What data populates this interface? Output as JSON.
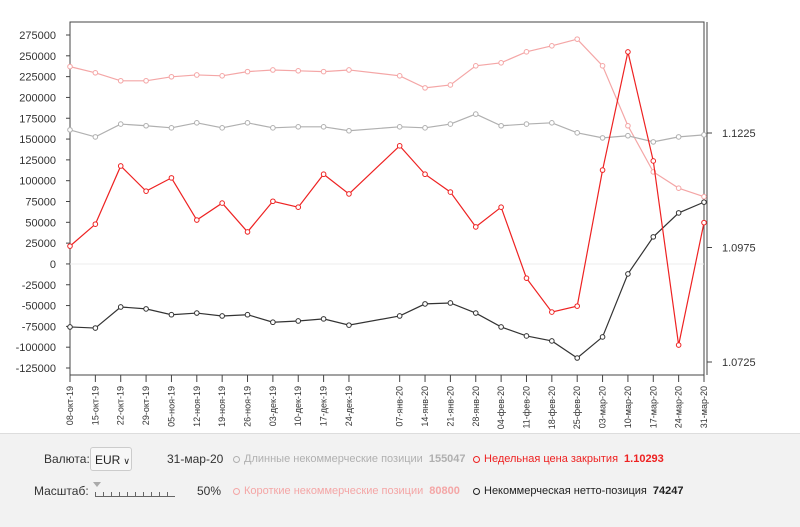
{
  "chart_data": {
    "type": "line",
    "categories": [
      "08-окт-19",
      "15-окт-19",
      "22-окт-19",
      "29-окт-19",
      "05-ноя-19",
      "12-ноя-19",
      "19-ноя-19",
      "26-ноя-19",
      "03-дек-19",
      "10-дек-19",
      "17-дек-19",
      "24-дек-19",
      "",
      "07-янв-20",
      "14-янв-20",
      "21-янв-20",
      "28-янв-20",
      "04-фев-20",
      "11-фев-20",
      "18-фев-20",
      "25-фев-20",
      "03-мар-20",
      "10-мар-20",
      "17-мар-20",
      "24-мар-20",
      "31-мар-20"
    ],
    "left_axis": {
      "min": -125000,
      "max": 275000,
      "step": 25000,
      "ticks": [
        "275000",
        "250000",
        "225000",
        "200000",
        "175000",
        "150000",
        "125000",
        "100000",
        "75000",
        "50000",
        "25000",
        "0",
        "-25000",
        "-50000",
        "-75000",
        "-100000",
        "-125000"
      ]
    },
    "right_axis": {
      "min": 1.0725,
      "max": 1.1475,
      "ticks": [
        {
          "v": 1.1225,
          "label": "1.1225"
        },
        {
          "v": 1.0975,
          "label": "1.0975"
        },
        {
          "v": 1.0725,
          "label": "1.0725"
        }
      ]
    },
    "series": [
      {
        "name": "Короткие некоммерческие позиции",
        "color": "#f4a6a6",
        "axis": "left",
        "values": [
          237000,
          229600,
          220000,
          220000,
          224800,
          227000,
          226000,
          231000,
          233000,
          232000,
          231000,
          233000,
          null,
          226000,
          211500,
          215000,
          238000,
          241600,
          254800,
          262000,
          270000,
          238000,
          166000,
          110600,
          91000,
          80800
        ]
      },
      {
        "name": "Длинные некоммерческие позиции",
        "color": "#b0b0b0",
        "axis": "left",
        "values": [
          161000,
          152600,
          168000,
          166000,
          163500,
          169500,
          163500,
          169500,
          163500,
          164700,
          164700,
          160000,
          null,
          164700,
          163500,
          168000,
          180000,
          166000,
          168000,
          169500,
          157500,
          151400,
          154000,
          146600,
          152600,
          155047
        ]
      },
      {
        "name": "Некоммерческая нетто-позиция",
        "color": "#333333",
        "axis": "left",
        "values": [
          -75700,
          -77000,
          -51700,
          -54000,
          -61000,
          -59000,
          -62500,
          -61000,
          -70000,
          -68500,
          -66000,
          -73500,
          null,
          -62500,
          -48000,
          -46900,
          -59000,
          -75700,
          -86500,
          -92500,
          -113000,
          -87700,
          -12000,
          32500,
          61300,
          74247
        ]
      },
      {
        "name": "Недельная цена закрытия",
        "color": "#ee2222",
        "axis": "right",
        "values": [
          1.0978,
          1.1026,
          1.1153,
          1.1098,
          1.1127,
          1.1035,
          1.1072,
          1.1009,
          1.1076,
          1.1063,
          1.1135,
          1.1092,
          null,
          1.1197,
          1.1135,
          1.1096,
          1.102,
          1.1063,
          1.0908,
          1.0834,
          1.0847,
          1.1144,
          1.1402,
          1.1164,
          1.0762,
          1.10293
        ]
      }
    ]
  },
  "controls": {
    "currency_label": "Валюта:",
    "currency_value": "EUR",
    "date": "31-мар-20",
    "scale_label": "Масштаб:",
    "scale_value": "50%",
    "scale_fraction": 0.0
  },
  "legend": {
    "long": {
      "label": "Длинные некоммерческие позиции",
      "value": "155047",
      "color": "#b0b0b0"
    },
    "short": {
      "label": "Короткие некоммерческие позиции",
      "value": "80800",
      "color": "#f4a6a6"
    },
    "price": {
      "label": "Недельная цена закрытия",
      "value": "1.10293",
      "color": "#ee2222"
    },
    "net": {
      "label": "Некоммерческая нетто-позиция",
      "value": "74247",
      "color": "#222222"
    }
  }
}
